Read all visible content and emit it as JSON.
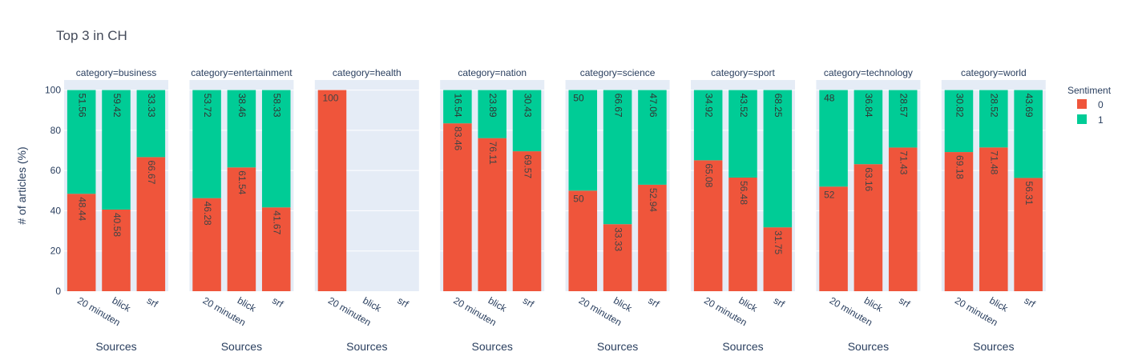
{
  "chart_data": {
    "type": "bar",
    "barmode": "stack",
    "title": "Top 3 in CH",
    "xlabel": "Sources",
    "ylabel": "# of articles (%)",
    "ylim": [
      0,
      105
    ],
    "yticks": [
      0,
      20,
      40,
      60,
      80,
      100
    ],
    "sources": [
      "20 minuten",
      "blick",
      "srf"
    ],
    "legend": {
      "title": "Sentiment",
      "position": "right",
      "entries": [
        {
          "name": "0",
          "color": "#EF553B"
        },
        {
          "name": "1",
          "color": "#00CC96"
        }
      ]
    },
    "grid": true,
    "facets": [
      {
        "title": "category=business",
        "bars": [
          {
            "source": "20 minuten",
            "s0": 48.44,
            "s1": 51.56
          },
          {
            "source": "blick",
            "s0": 40.58,
            "s1": 59.42
          },
          {
            "source": "srf",
            "s0": 66.67,
            "s1": 33.33
          }
        ]
      },
      {
        "title": "category=entertainment",
        "bars": [
          {
            "source": "20 minuten",
            "s0": 46.28,
            "s1": 53.72
          },
          {
            "source": "blick",
            "s0": 61.54,
            "s1": 38.46
          },
          {
            "source": "srf",
            "s0": 41.67,
            "s1": 58.33
          }
        ]
      },
      {
        "title": "category=health",
        "bars": [
          {
            "source": "20 minuten",
            "s0": 100,
            "s1": null
          }
        ]
      },
      {
        "title": "category=nation",
        "bars": [
          {
            "source": "20 minuten",
            "s0": 83.46,
            "s1": 16.54
          },
          {
            "source": "blick",
            "s0": 76.11,
            "s1": 23.89
          },
          {
            "source": "srf",
            "s0": 69.57,
            "s1": 30.43
          }
        ]
      },
      {
        "title": "category=science",
        "bars": [
          {
            "source": "20 minuten",
            "s0": 50,
            "s1": 50
          },
          {
            "source": "blick",
            "s0": 33.33,
            "s1": 66.67
          },
          {
            "source": "srf",
            "s0": 52.94,
            "s1": 47.06
          }
        ]
      },
      {
        "title": "category=sport",
        "bars": [
          {
            "source": "20 minuten",
            "s0": 65.08,
            "s1": 34.92
          },
          {
            "source": "blick",
            "s0": 56.48,
            "s1": 43.52
          },
          {
            "source": "srf",
            "s0": 31.75,
            "s1": 68.25
          }
        ]
      },
      {
        "title": "category=technology",
        "bars": [
          {
            "source": "20 minuten",
            "s0": 52,
            "s1": 48
          },
          {
            "source": "blick",
            "s0": 63.16,
            "s1": 36.84
          },
          {
            "source": "srf",
            "s0": 71.43,
            "s1": 28.57
          }
        ]
      },
      {
        "title": "category=world",
        "bars": [
          {
            "source": "20 minuten",
            "s0": 69.18,
            "s1": 30.82
          },
          {
            "source": "blick",
            "s0": 71.48,
            "s1": 28.52
          },
          {
            "source": "srf",
            "s0": 56.31,
            "s1": 43.69
          }
        ]
      }
    ]
  }
}
